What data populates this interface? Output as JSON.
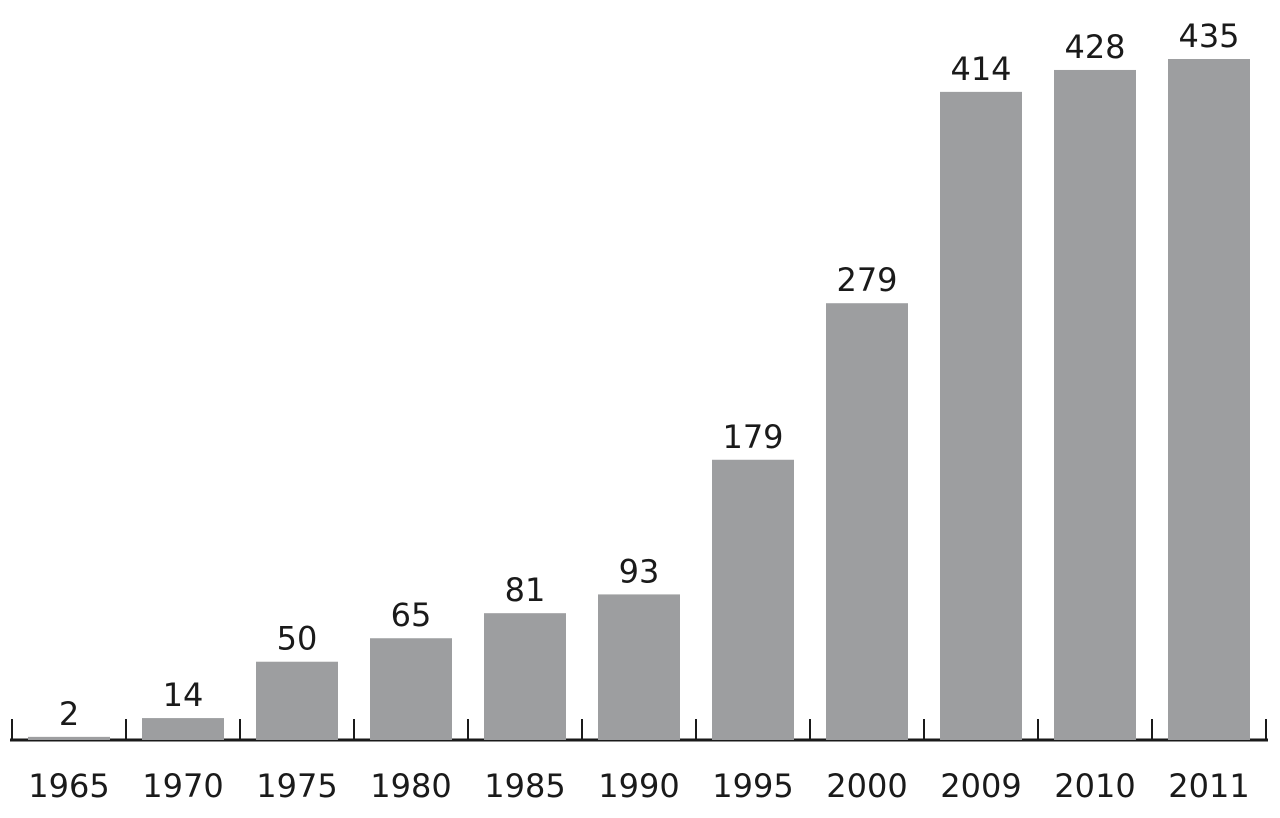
{
  "chart_data": {
    "type": "bar",
    "categories": [
      "1965",
      "1970",
      "1975",
      "1980",
      "1985",
      "1990",
      "1995",
      "2000",
      "2009",
      "2010",
      "2011"
    ],
    "values": [
      2,
      14,
      50,
      65,
      81,
      93,
      179,
      279,
      414,
      428,
      435
    ],
    "color": "#9d9ea0"
  }
}
